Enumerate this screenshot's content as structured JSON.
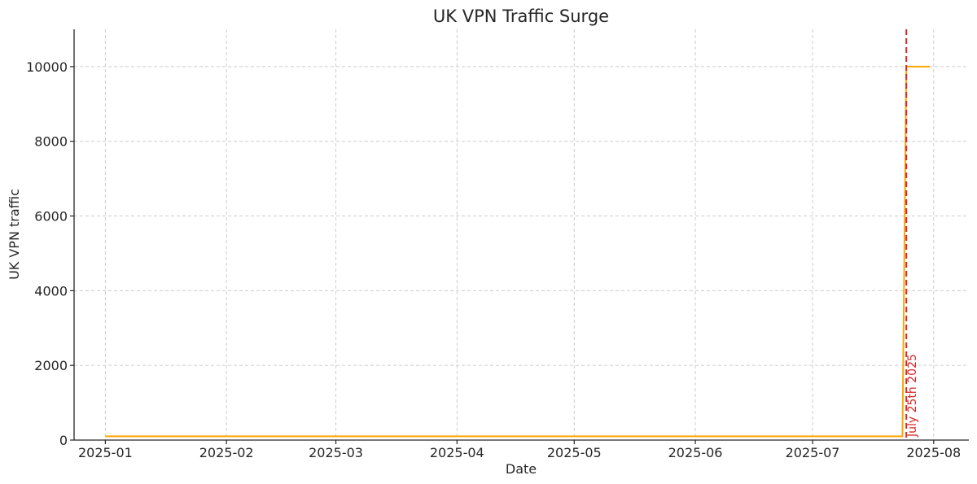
{
  "chart_data": {
    "type": "line",
    "title": "UK VPN Traffic Surge",
    "xlabel": "Date",
    "ylabel": "UK VPN traffic",
    "x_ticks": [
      "2025-01",
      "2025-02",
      "2025-03",
      "2025-04",
      "2025-05",
      "2025-06",
      "2025-07",
      "2025-08"
    ],
    "x_tick_dates": [
      "2025-01-01",
      "2025-02-01",
      "2025-03-01",
      "2025-04-01",
      "2025-05-01",
      "2025-06-01",
      "2025-07-01",
      "2025-08-01"
    ],
    "y_ticks": [
      0,
      2000,
      4000,
      6000,
      8000,
      10000
    ],
    "xlim": [
      "2024-12-24",
      "2025-08-10"
    ],
    "ylim": [
      0,
      11000
    ],
    "grid": true,
    "series": [
      {
        "color": "#FFA500",
        "points": [
          {
            "x": "2025-01-01",
            "y": 100
          },
          {
            "x": "2025-07-24",
            "y": 100
          },
          {
            "x": "2025-07-25",
            "y": 10000
          },
          {
            "x": "2025-07-31",
            "y": 10000
          }
        ]
      }
    ],
    "annotations": [
      {
        "type": "vline",
        "x": "2025-07-25",
        "label": "July 25th 2025",
        "color": "#D62728",
        "style": "dashed"
      }
    ]
  }
}
